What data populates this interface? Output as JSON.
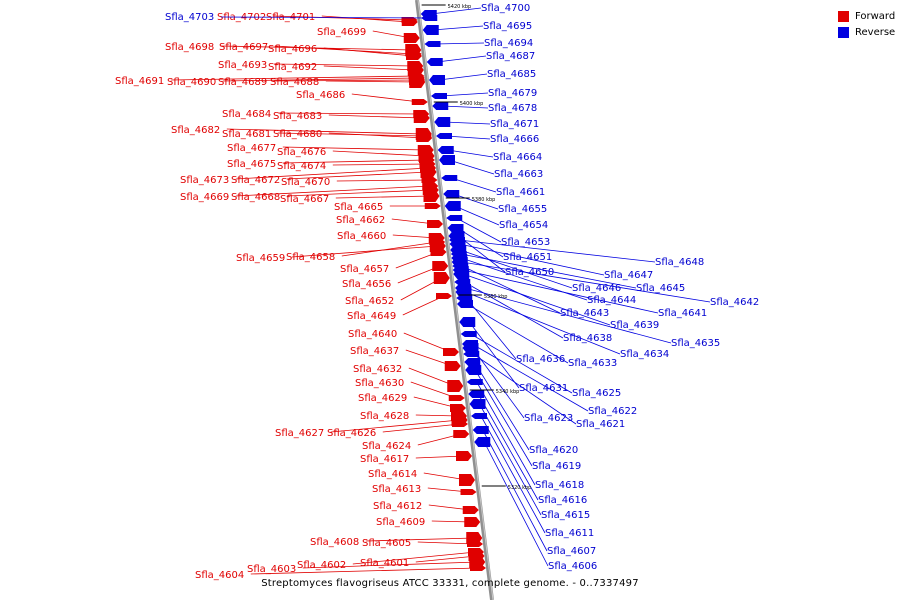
{
  "colors": {
    "forward": "#e00000",
    "reverse": "#0000e0",
    "axis": "#808080",
    "forward_label": "#e00000",
    "reverse_label": "#0000d0"
  },
  "legend": {
    "forward_label": "Forward",
    "reverse_label": "Reverse"
  },
  "caption": "Streptomyces flavogriseus ATCC 33331, complete genome. - 0..7337497",
  "ruler": [
    "5420 kbp",
    "5400 kbp",
    "5380 kbp",
    "5360 kbp",
    "5340 kbp",
    "5320 kbp"
  ],
  "forward_genes": [
    "Sfla_4702",
    "Sfla_4701",
    "Sfla_4699",
    "Sfla_4698",
    "Sfla_4697",
    "Sfla_4696",
    "Sfla_4693",
    "Sfla_4692",
    "Sfla_4691",
    "Sfla_4690",
    "Sfla_4689",
    "Sfla_4688",
    "Sfla_4686",
    "Sfla_4684",
    "Sfla_4683",
    "Sfla_4682",
    "Sfla_4681",
    "Sfla_4680",
    "Sfla_4677",
    "Sfla_4676",
    "Sfla_4675",
    "Sfla_4674",
    "Sfla_4673",
    "Sfla_4672",
    "Sfla_4670",
    "Sfla_4669",
    "Sfla_4668",
    "Sfla_4667",
    "Sfla_4665",
    "Sfla_4662",
    "Sfla_4660",
    "Sfla_4659",
    "Sfla_4658",
    "Sfla_4657",
    "Sfla_4656",
    "Sfla_4652",
    "Sfla_4649",
    "Sfla_4640",
    "Sfla_4637",
    "Sfla_4632",
    "Sfla_4630",
    "Sfla_4629",
    "Sfla_4628",
    "Sfla_4627",
    "Sfla_4626",
    "Sfla_4624",
    "Sfla_4617",
    "Sfla_4614",
    "Sfla_4613",
    "Sfla_4612",
    "Sfla_4609",
    "Sfla_4608",
    "Sfla_4605",
    "Sfla_4602",
    "Sfla_4601",
    "Sfla_4603",
    "Sfla_4604"
  ],
  "reverse_genes": [
    "Sfla_4703",
    "Sfla_4700",
    "Sfla_4695",
    "Sfla_4694",
    "Sfla_4687",
    "Sfla_4685",
    "Sfla_4679",
    "Sfla_4678",
    "Sfla_4671",
    "Sfla_4666",
    "Sfla_4664",
    "Sfla_4663",
    "Sfla_4661",
    "Sfla_4655",
    "Sfla_4654",
    "Sfla_4653",
    "Sfla_4651",
    "Sfla_4650",
    "Sfla_4648",
    "Sfla_4647",
    "Sfla_4646",
    "Sfla_4645",
    "Sfla_4644",
    "Sfla_4642",
    "Sfla_4643",
    "Sfla_4641",
    "Sfla_4639",
    "Sfla_4638",
    "Sfla_4635",
    "Sfla_4634",
    "Sfla_4636",
    "Sfla_4633",
    "Sfla_4631",
    "Sfla_4625",
    "Sfla_4622",
    "Sfla_4623",
    "Sfla_4621",
    "Sfla_4620",
    "Sfla_4619",
    "Sfla_4618",
    "Sfla_4616",
    "Sfla_4615",
    "Sfla_4611",
    "Sfla_4607",
    "Sfla_4606"
  ]
}
